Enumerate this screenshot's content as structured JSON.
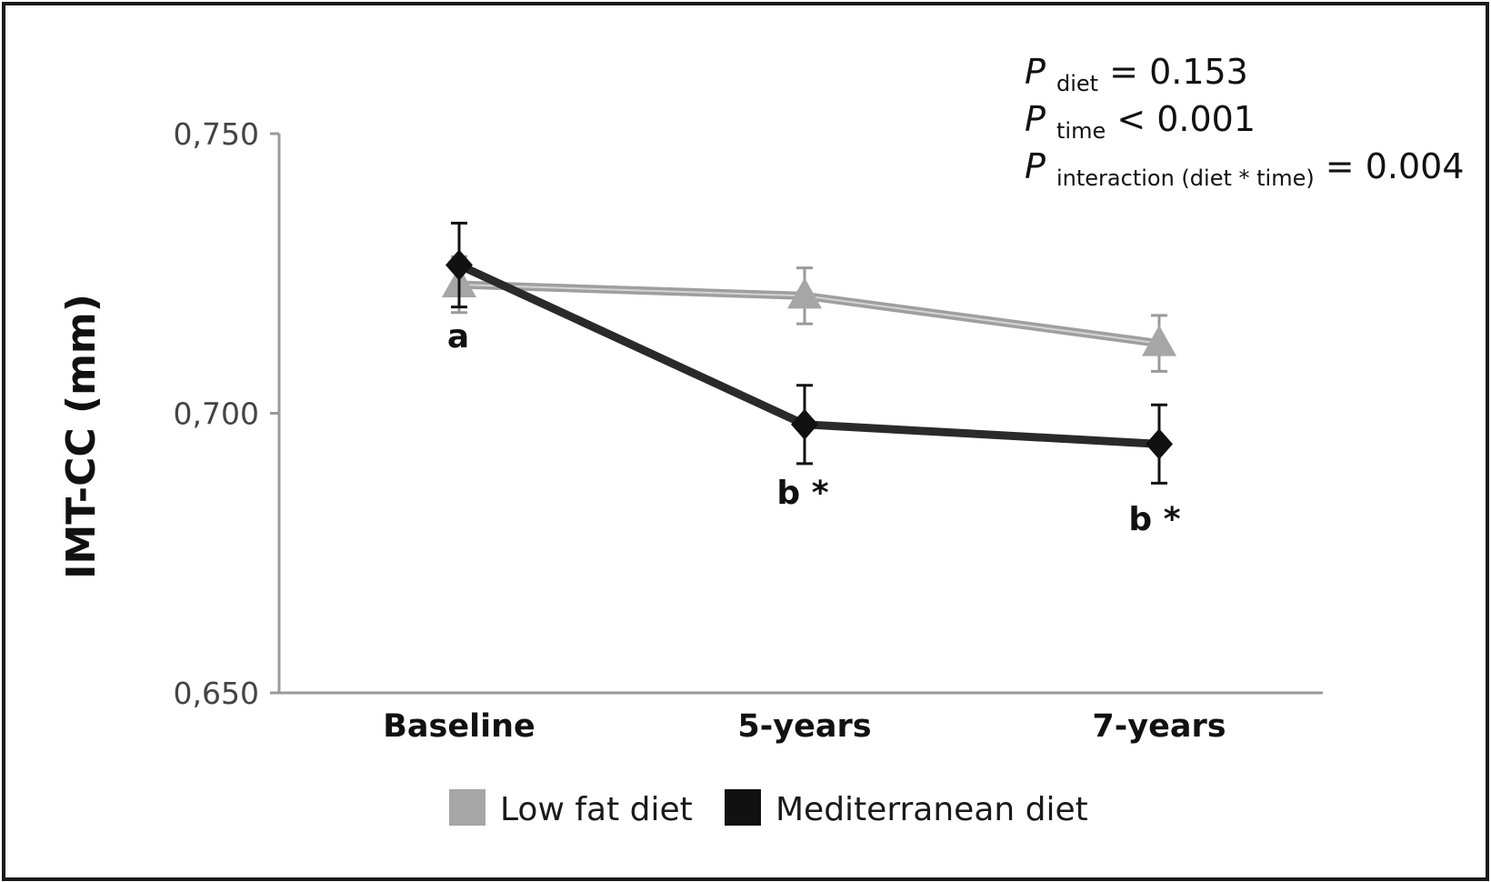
{
  "chart_data": {
    "type": "line",
    "categories": [
      "Baseline",
      "5-years",
      "7-years"
    ],
    "ylabel": "IMT-CC (mm)",
    "xlabel": "",
    "ylim": [
      0.65,
      0.75
    ],
    "yticks": [
      0.65,
      0.7,
      0.75
    ],
    "ytick_labels": [
      "0,650",
      "0,700",
      "0,750"
    ],
    "grid": false,
    "legend_position": "bottom",
    "series": [
      {
        "name": "Low fat diet",
        "values": [
          0.723,
          0.721,
          0.7125
        ],
        "error": [
          0.005,
          0.005,
          0.005
        ],
        "color": "#a6a6a6",
        "marker": "triangle"
      },
      {
        "name": "Mediterranean diet",
        "values": [
          0.7265,
          0.698,
          0.6945
        ],
        "error": [
          0.0075,
          0.007,
          0.007
        ],
        "color": "#111111",
        "marker": "diamond"
      }
    ],
    "annotations": [
      {
        "text": "a",
        "category": "Baseline"
      },
      {
        "text": "b *",
        "category": "5-years"
      },
      {
        "text": "b *",
        "category": "7-years"
      }
    ],
    "stats": [
      {
        "p": "P",
        "sub": "diet",
        "rest": "= 0.153"
      },
      {
        "p": "P",
        "sub": "time",
        "rest": "< 0.001"
      },
      {
        "p": "P",
        "sub": "interaction (diet * time)",
        "rest": "= 0.004"
      }
    ]
  }
}
